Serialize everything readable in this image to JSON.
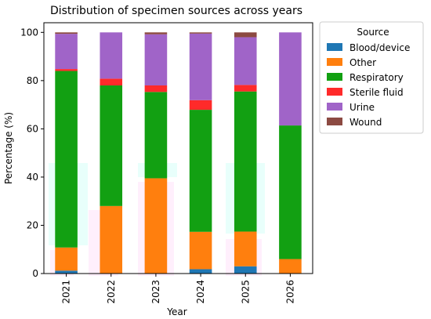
{
  "chart_data": {
    "type": "bar",
    "stacked": true,
    "title": "Distribution of specimen sources across years",
    "xlabel": "Year",
    "ylabel": "Percentage (%)",
    "ylim": [
      0,
      104
    ],
    "yticks": [
      0,
      20,
      40,
      60,
      80,
      100
    ],
    "categories": [
      "2021",
      "2022",
      "2023",
      "2024",
      "2025",
      "2026"
    ],
    "series": [
      {
        "name": "Blood/device",
        "color": "#1f77b4",
        "values": [
          1.2,
          0.0,
          0.0,
          1.8,
          3.0,
          0.0
        ]
      },
      {
        "name": "Other",
        "color": "#ff7f0e",
        "values": [
          9.6,
          28.0,
          39.5,
          15.5,
          14.4,
          6.0
        ]
      },
      {
        "name": "Respiratory",
        "color": "#12a012",
        "values": [
          73.2,
          50.0,
          35.8,
          50.6,
          58.1,
          55.4
        ]
      },
      {
        "name": "Sterile fluid",
        "color": "#ff2a2a",
        "values": [
          0.8,
          2.8,
          2.7,
          4.0,
          2.7,
          0.0
        ]
      },
      {
        "name": "Urine",
        "color": "#a064c8",
        "values": [
          14.6,
          19.2,
          21.2,
          27.6,
          19.8,
          38.6
        ]
      },
      {
        "name": "Wound",
        "color": "#8c4a42",
        "values": [
          0.6,
          0.0,
          0.8,
          0.5,
          2.0,
          0.0
        ]
      }
    ],
    "legend": {
      "title": "Source",
      "placement": "outside-right"
    },
    "grid": false
  }
}
